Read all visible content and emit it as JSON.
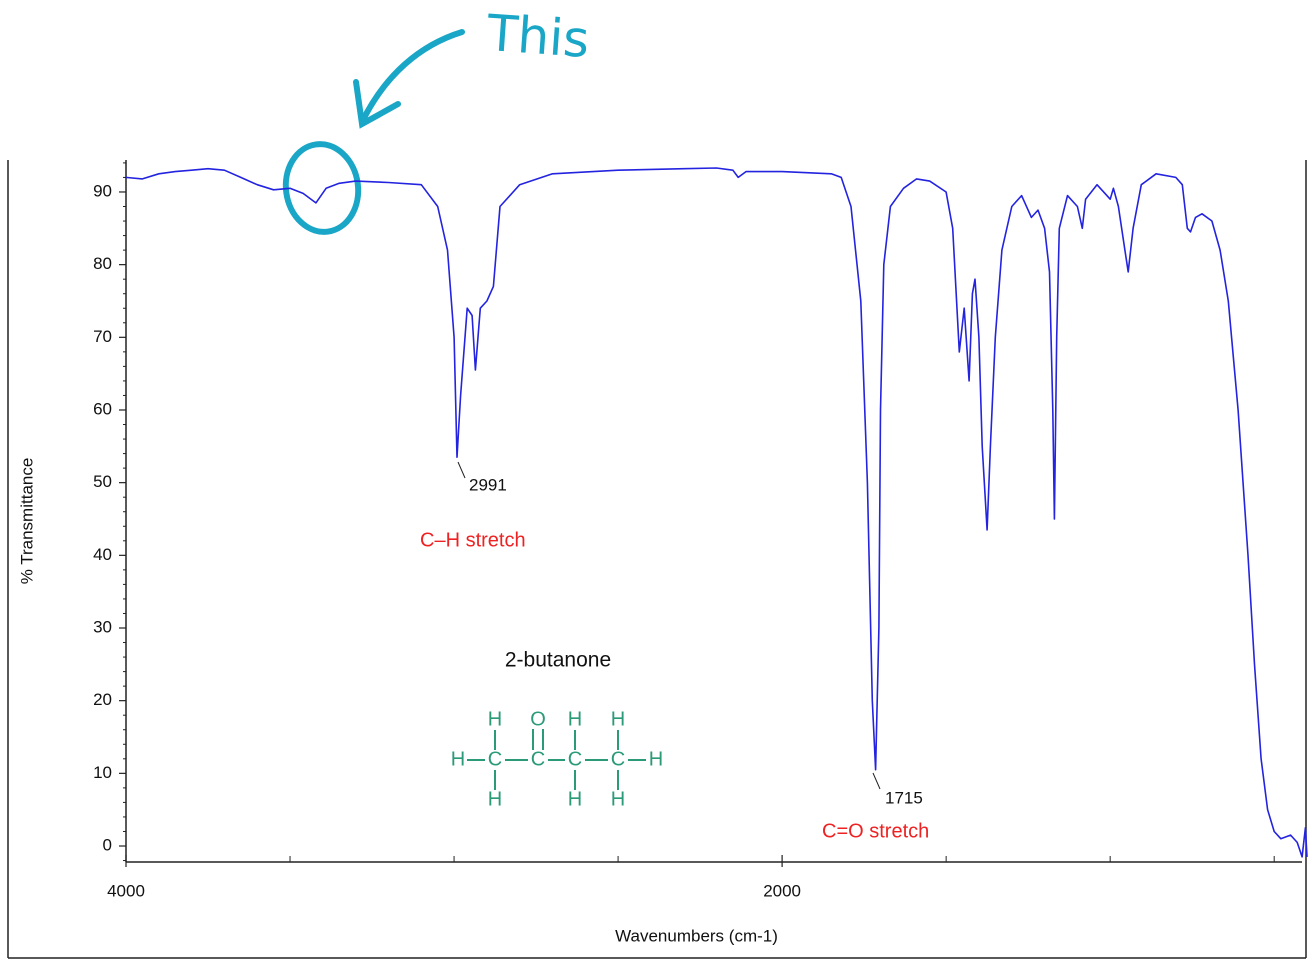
{
  "chart_data": {
    "type": "line",
    "x_label": "Wavenumbers (cm-1)",
    "y_label": "% Transmittance",
    "color": "#2323e0",
    "xlim": [
      4000,
      400
    ],
    "ylim": [
      -2.2,
      94.4
    ],
    "xticks": [
      4000,
      2000
    ],
    "xminor_ticks": [
      3500,
      3000,
      2500,
      1500,
      1000,
      500
    ],
    "yticks": [
      0,
      10,
      20,
      30,
      40,
      50,
      60,
      70,
      80,
      90
    ],
    "yminor_ticks": [
      -2,
      2,
      4,
      6,
      8,
      12,
      14,
      16,
      18,
      22,
      24,
      26,
      28,
      32,
      34,
      36,
      38,
      42,
      44,
      46,
      48,
      52,
      54,
      56,
      58,
      62,
      64,
      66,
      68,
      72,
      74,
      76,
      78,
      82,
      84,
      86,
      88,
      92,
      94
    ],
    "x": [
      4000,
      3950,
      3900,
      3850,
      3800,
      3750,
      3700,
      3650,
      3600,
      3550,
      3500,
      3460,
      3421,
      3390,
      3350,
      3300,
      3200,
      3100,
      3050,
      3020,
      3000,
      2991,
      2980,
      2960,
      2945,
      2935,
      2920,
      2900,
      2880,
      2860,
      2800,
      2700,
      2500,
      2300,
      2200,
      2150,
      2134,
      2110,
      2000,
      1850,
      1820,
      1790,
      1760,
      1740,
      1725,
      1715,
      1705,
      1700,
      1690,
      1670,
      1630,
      1590,
      1550,
      1500,
      1480,
      1460,
      1445,
      1430,
      1420,
      1412,
      1400,
      1390,
      1375,
      1365,
      1350,
      1330,
      1300,
      1270,
      1240,
      1220,
      1200,
      1185,
      1175,
      1170,
      1163,
      1155,
      1130,
      1100,
      1085,
      1075,
      1040,
      1000,
      990,
      975,
      955,
      945,
      930,
      905,
      860,
      800,
      780,
      765,
      755,
      740,
      720,
      690,
      665,
      640,
      610,
      580,
      560,
      540,
      520,
      500,
      480,
      450,
      430,
      415,
      405,
      400
    ],
    "values": [
      92,
      91.8,
      92.5,
      92.8,
      93,
      93.2,
      93,
      92,
      91,
      90.3,
      90.5,
      89.8,
      88.5,
      90.5,
      91.2,
      91.5,
      91.3,
      91,
      88,
      82,
      70,
      53.5,
      62,
      74,
      73,
      65.5,
      74,
      75,
      77,
      88,
      91,
      92.5,
      93,
      93.2,
      93.3,
      93,
      92,
      92.8,
      92.8,
      92.5,
      92,
      88,
      75,
      50,
      20,
      10.5,
      30,
      60,
      80,
      88,
      90.5,
      91.8,
      91.5,
      90,
      85,
      68,
      74,
      64,
      76,
      78,
      70,
      55,
      43.5,
      55,
      70,
      82,
      88,
      89.5,
      86.5,
      87.5,
      85,
      79,
      60,
      45,
      70,
      85,
      89.5,
      88,
      85,
      89,
      91,
      89,
      90.5,
      88,
      82,
      79,
      85,
      91,
      92.5,
      92,
      91,
      85,
      84.5,
      86.5,
      87,
      86,
      82,
      75,
      60,
      40,
      25,
      12,
      5,
      2,
      1,
      1.5,
      0.5,
      -1.5,
      2.5,
      -1.5
    ],
    "annotations": [
      {
        "text": "2991"
      },
      {
        "text": "C–H stretch"
      },
      {
        "text": "2-butanone"
      },
      {
        "text": "1715"
      },
      {
        "text": "C=O stretch"
      },
      {
        "text": "This"
      }
    ],
    "structure": [
      [
        "H",
        "O",
        "H",
        "H"
      ],
      [
        "H",
        "C",
        "C",
        "C",
        "C",
        "H"
      ],
      [
        "H",
        "H",
        "H"
      ]
    ]
  }
}
